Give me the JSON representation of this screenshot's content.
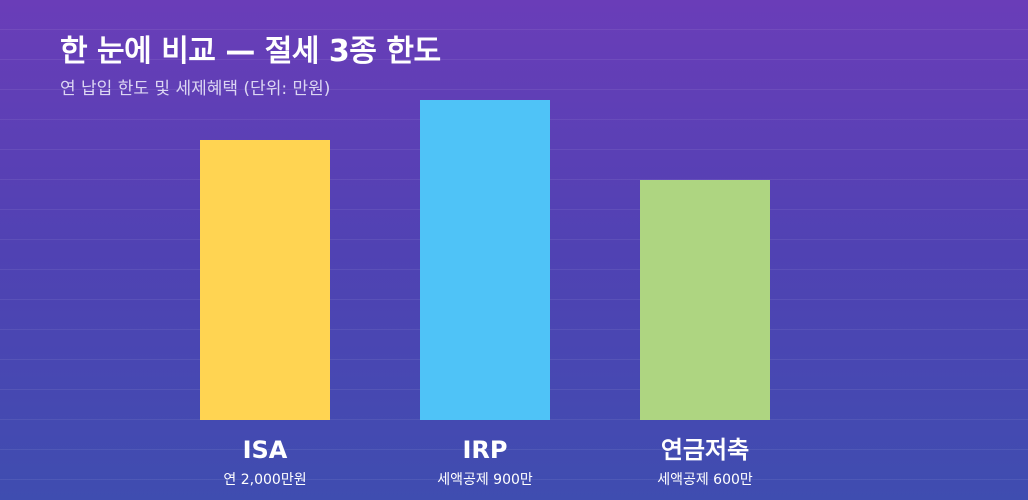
{
  "title": "한 눈에 비교 — 절세 3종 한도",
  "subtitle": "연 납입 한도 및 세제혜택 (단위: 만원)",
  "colors": {
    "ISA": "#ffd452",
    "IRP": "#4fc3f7",
    "연금저축": "#aed581"
  },
  "chart_data": {
    "type": "bar",
    "title": "한 눈에 비교 — 절세 3종 한도",
    "subtitle": "연 납입 한도 및 세제혜택 (단위: 만원)",
    "categories": [
      "ISA",
      "IRP",
      "연금저축"
    ],
    "notes": [
      "연 2,000만원",
      "세액공제 900만",
      "세액공제 600만"
    ],
    "values": [
      2000,
      900,
      600
    ],
    "grid": true,
    "legend": "none"
  }
}
